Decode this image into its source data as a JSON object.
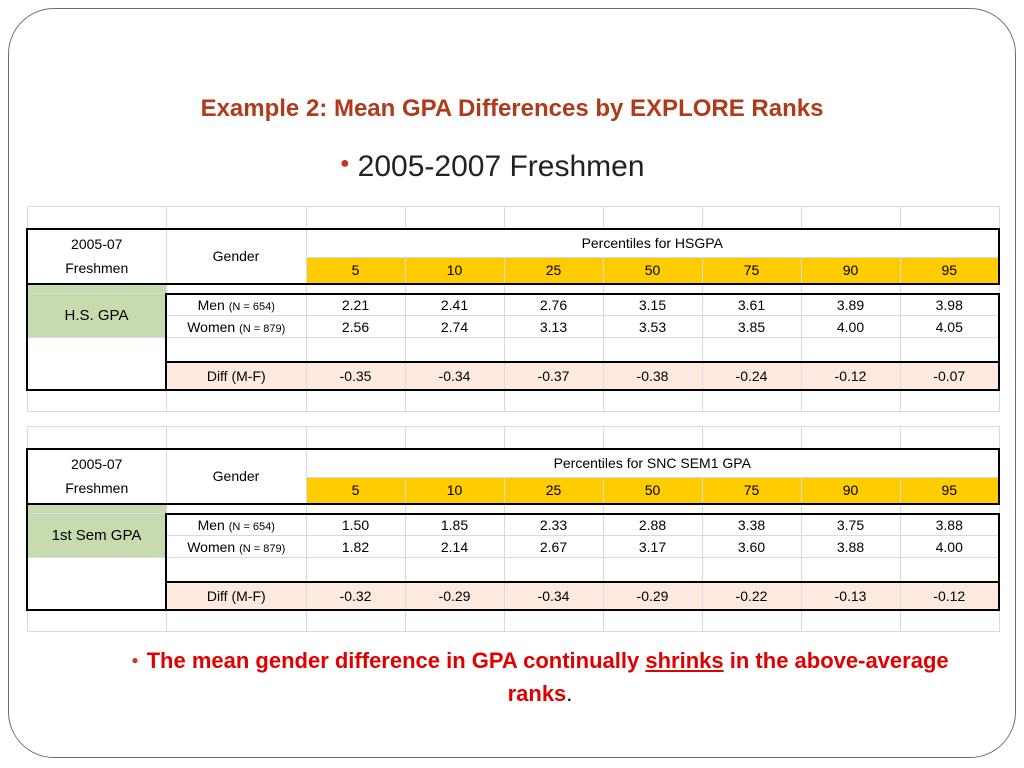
{
  "title": "Example 2: Mean GPA Differences by EXPLORE Ranks",
  "subtitle": "2005-2007 Freshmen",
  "percentiles": [
    "5",
    "10",
    "25",
    "50",
    "75",
    "90",
    "95"
  ],
  "tables": [
    {
      "cohort_line1": "2005-07",
      "cohort_line2": "Freshmen",
      "gender_header": "Gender",
      "percentile_header": "Percentiles for HSGPA",
      "measure_label": "H.S. GPA",
      "men_label": "Men",
      "men_n": "(N = 654)",
      "women_label": "Women",
      "women_n": "(N = 879)",
      "men": [
        "2.21",
        "2.41",
        "2.76",
        "3.15",
        "3.61",
        "3.89",
        "3.98"
      ],
      "women": [
        "2.56",
        "2.74",
        "3.13",
        "3.53",
        "3.85",
        "4.00",
        "4.05"
      ],
      "diff_label": "Diff (M-F)",
      "diff": [
        "-0.35",
        "-0.34",
        "-0.37",
        "-0.38",
        "-0.24",
        "-0.12",
        "-0.07"
      ]
    },
    {
      "cohort_line1": "2005-07",
      "cohort_line2": "Freshmen",
      "gender_header": "Gender",
      "percentile_header": "Percentiles for SNC SEM1 GPA",
      "measure_label": "1st Sem GPA",
      "men_label": "Men",
      "men_n": "(N = 654)",
      "women_label": "Women",
      "women_n": "(N = 879)",
      "men": [
        "1.50",
        "1.85",
        "2.33",
        "2.88",
        "3.38",
        "3.75",
        "3.88"
      ],
      "women": [
        "1.82",
        "2.14",
        "2.67",
        "3.17",
        "3.60",
        "3.88",
        "4.00"
      ],
      "diff_label": "Diff (M-F)",
      "diff": [
        "-0.32",
        "-0.29",
        "-0.34",
        "-0.29",
        "-0.22",
        "-0.13",
        "-0.12"
      ]
    }
  ],
  "note": {
    "before": "The mean gender difference in GPA continually",
    "emph": "shrinks",
    "after": "in the above-average ranks",
    "period": "."
  },
  "colors": {
    "title": "#b03a1c",
    "percentile_header_fill": "#ffcc00",
    "measure_fill": "#c7dcae",
    "diff_fill": "#fde9de",
    "note": "#e00000"
  }
}
